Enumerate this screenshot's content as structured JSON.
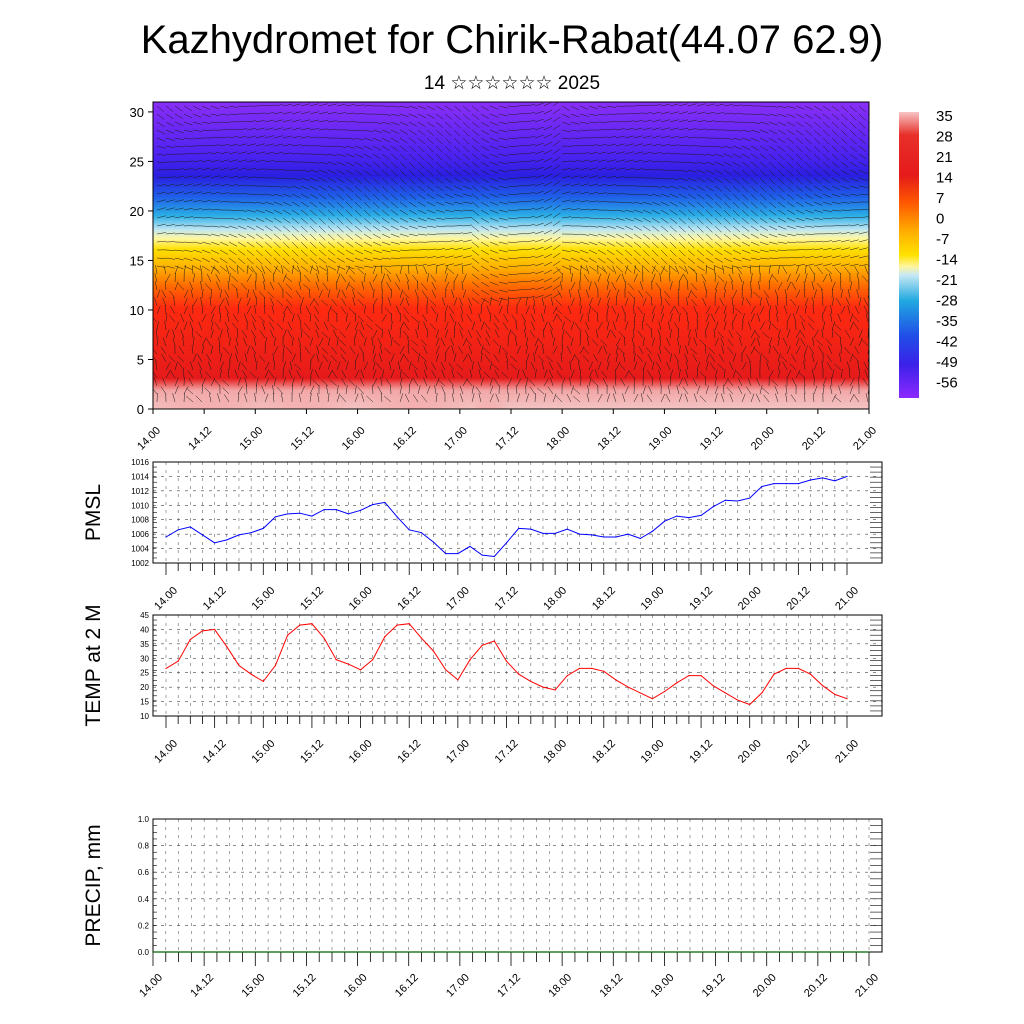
{
  "header": {
    "title": "Kazhydromet for Chirik-Rabat(44.07 62.9)",
    "subtitle": "14 ☆☆☆☆☆☆ 2025"
  },
  "colors": {
    "pmsl_line": "#0000ff",
    "temp_line": "#ff0000",
    "precip_line": "#006400",
    "colorbar": [
      "#f4b8b8",
      "#e51a1a",
      "#ff7a00",
      "#ffd500",
      "#fff59d",
      "#a8dcf0",
      "#20a8e0",
      "#2050e8",
      "#6020e0",
      "#8c28ff"
    ]
  },
  "chart_data": [
    {
      "type": "heatmap",
      "name": "cross-section",
      "x_ticks": [
        "14.00",
        "14.12",
        "15.00",
        "15.12",
        "16.00",
        "16.12",
        "17.00",
        "17.12",
        "18.00",
        "18.12",
        "19.00",
        "19.12",
        "20.00",
        "20.12",
        "21.00"
      ],
      "y_ticks": [
        "0",
        "5",
        "10",
        "15",
        "20",
        "25",
        "30"
      ],
      "ylim": [
        0,
        31
      ],
      "colorbar_labels": [
        "35",
        "28",
        "21",
        "14",
        "7",
        "0",
        "-7",
        "-14",
        "-21",
        "-28",
        "-35",
        "-42",
        "-49",
        "-56"
      ],
      "overlay": "wind barbs"
    },
    {
      "type": "line",
      "ylabel": "PMSL",
      "x_ticks": [
        "14.00",
        "14.12",
        "15.00",
        "15.12",
        "16.00",
        "16.12",
        "17.00",
        "17.12",
        "18.00",
        "18.12",
        "19.00",
        "19.12",
        "20.00",
        "20.12",
        "21.00"
      ],
      "y_ticks": [
        "1002",
        "1004",
        "1006",
        "1008",
        "1010",
        "1012",
        "1014",
        "1016"
      ],
      "ylim": [
        1002,
        1016
      ],
      "values": [
        1005.6,
        1006.6,
        1007.0,
        1005.9,
        1004.8,
        1005.2,
        1005.9,
        1006.2,
        1006.8,
        1008.4,
        1008.8,
        1008.9,
        1008.5,
        1009.4,
        1009.4,
        1008.8,
        1009.3,
        1010.1,
        1010.4,
        1008.4,
        1006.6,
        1006.2,
        1004.9,
        1003.3,
        1003.3,
        1004.3,
        1003.1,
        1002.9,
        1004.8,
        1006.8,
        1006.7,
        1006.1,
        1006.1,
        1006.7,
        1006.0,
        1005.9,
        1005.6,
        1005.6,
        1006.0,
        1005.4,
        1006.4,
        1007.8,
        1008.5,
        1008.3,
        1008.6,
        1009.8,
        1010.7,
        1010.6,
        1011.0,
        1012.6,
        1013.0,
        1013.0,
        1013.0,
        1013.5,
        1013.8,
        1013.4,
        1014.0
      ]
    },
    {
      "type": "line",
      "ylabel": "TEMP at 2 M",
      "x_ticks": [
        "14.00",
        "14.12",
        "15.00",
        "15.12",
        "16.00",
        "16.12",
        "17.00",
        "17.12",
        "18.00",
        "18.12",
        "19.00",
        "19.12",
        "20.00",
        "20.12",
        "21.00"
      ],
      "y_ticks": [
        "10",
        "15",
        "20",
        "25",
        "30",
        "35",
        "40",
        "45"
      ],
      "ylim": [
        10,
        45
      ],
      "values": [
        26.5,
        29.0,
        36.5,
        39.5,
        40.0,
        34.0,
        27.5,
        24.5,
        22.0,
        27.5,
        38.0,
        41.5,
        42.0,
        37.0,
        29.5,
        28.0,
        26.0,
        29.5,
        37.5,
        41.5,
        42.0,
        37.0,
        32.5,
        26.0,
        22.5,
        29.5,
        34.5,
        36.0,
        29.0,
        24.5,
        22.0,
        20.0,
        19.0,
        24.0,
        26.5,
        26.5,
        25.5,
        22.5,
        20.0,
        18.0,
        16.0,
        18.5,
        21.5,
        24.0,
        24.0,
        20.5,
        18.0,
        15.5,
        14.0,
        18.0,
        24.5,
        26.5,
        26.5,
        24.5,
        20.5,
        17.5,
        16.0
      ]
    },
    {
      "type": "line",
      "ylabel": "PRECIP, mm",
      "x_ticks": [
        "14.00",
        "14.12",
        "15.00",
        "15.12",
        "16.00",
        "16.12",
        "17.00",
        "17.12",
        "18.00",
        "18.12",
        "19.00",
        "19.12",
        "20.00",
        "20.12",
        "21.00"
      ],
      "y_ticks": [
        "0.0",
        "0.2",
        "0.4",
        "0.6",
        "0.8",
        "1.0"
      ],
      "ylim": [
        0,
        1
      ],
      "values": [
        0,
        0,
        0,
        0,
        0,
        0,
        0,
        0,
        0,
        0,
        0,
        0,
        0,
        0,
        0,
        0,
        0,
        0,
        0,
        0,
        0,
        0,
        0,
        0,
        0,
        0,
        0,
        0,
        0,
        0,
        0,
        0,
        0,
        0,
        0,
        0,
        0,
        0,
        0,
        0,
        0,
        0,
        0,
        0,
        0,
        0,
        0,
        0,
        0,
        0,
        0,
        0,
        0,
        0,
        0,
        0,
        0
      ]
    }
  ]
}
